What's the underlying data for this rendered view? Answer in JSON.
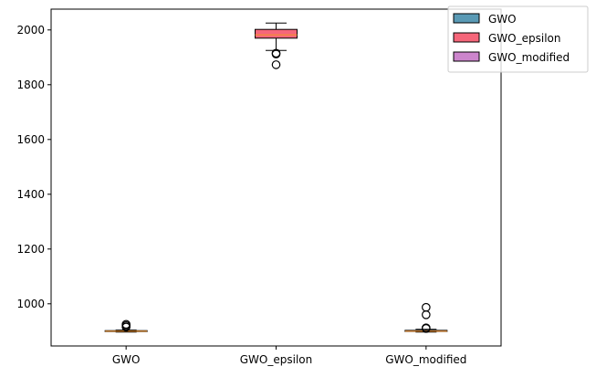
{
  "chart_data": {
    "type": "box",
    "categories": [
      "GWO",
      "GWO_epsilon",
      "GWO_modified"
    ],
    "series": [
      {
        "name": "GWO",
        "color": "#5a9ab5",
        "whislo": 897,
        "q1": 899,
        "med": 900,
        "q3": 902,
        "whishi": 904,
        "fliers": [
          915,
          920,
          925
        ]
      },
      {
        "name": "GWO_epsilon",
        "color": "#f5667a",
        "whislo": 1925,
        "q1": 1970,
        "med": 1982,
        "q3": 2002,
        "whishi": 2025,
        "fliers": [
          1873,
          1912,
          1915
        ]
      },
      {
        "name": "GWO_modified",
        "color": "#cc85cc",
        "whislo": 897,
        "q1": 899,
        "med": 900,
        "q3": 903,
        "whishi": 907,
        "fliers": [
          910,
          912,
          960,
          987
        ]
      }
    ],
    "yticks": [
      1000,
      1200,
      1400,
      1600,
      1800,
      2000
    ],
    "ylim": [
      846,
      2076
    ],
    "median_color": "#f0922e",
    "legend_placement": "top-right",
    "grid": false
  }
}
